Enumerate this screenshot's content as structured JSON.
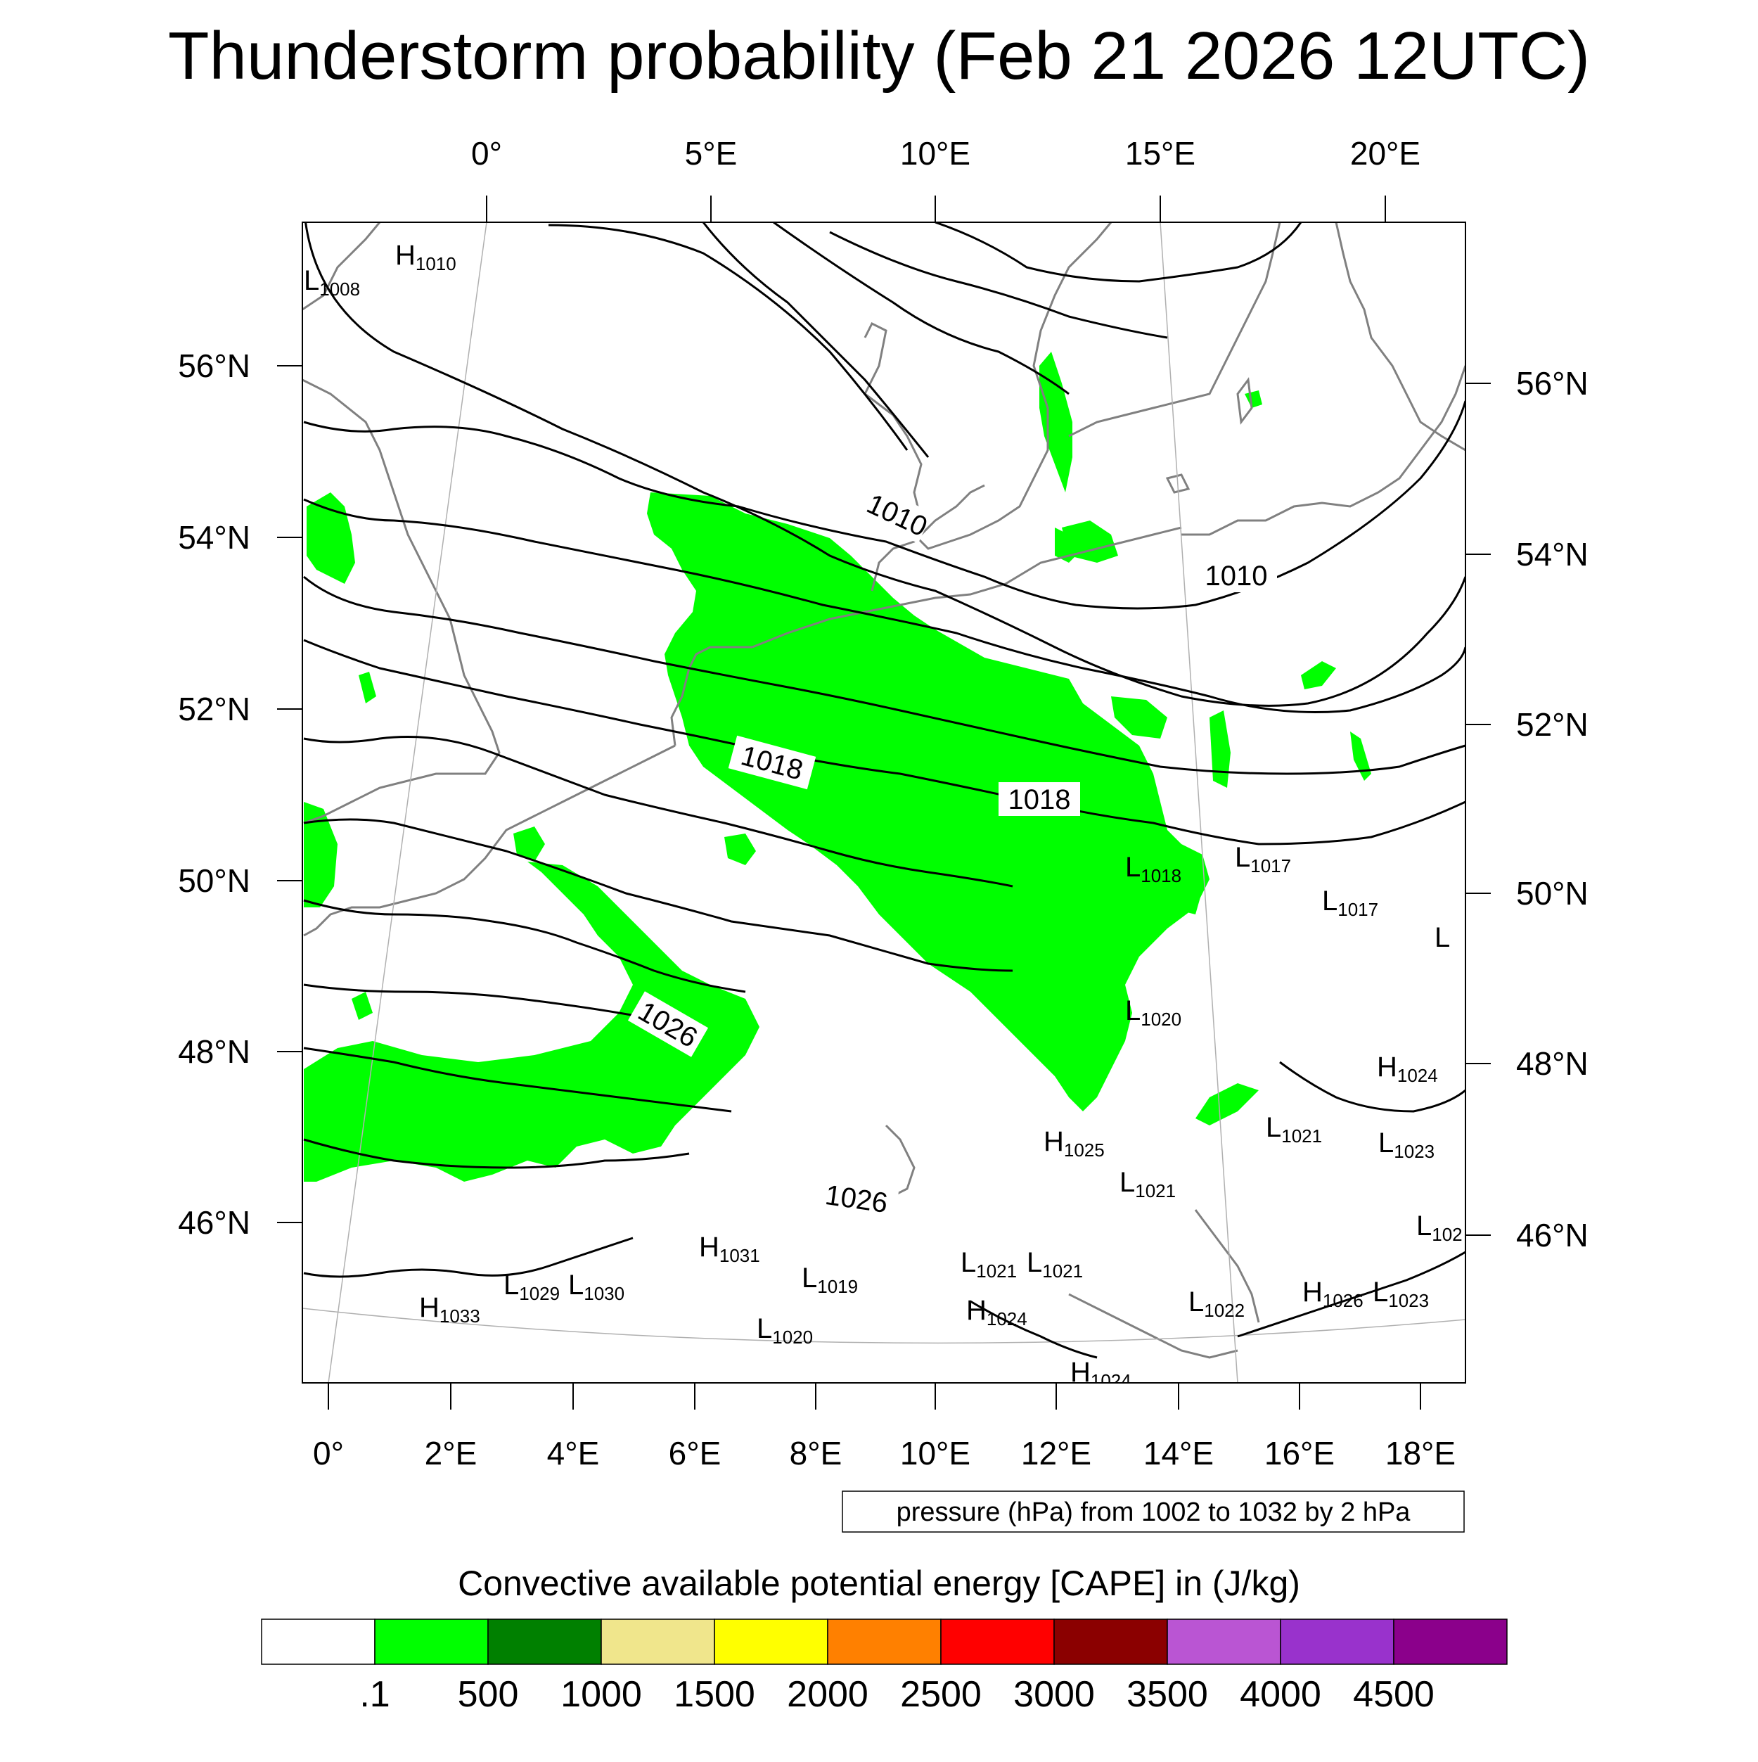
{
  "title": "Thunderstorm probability (Feb 21 2026 12UTC)",
  "axes": {
    "top": [
      "0°",
      "5°E",
      "10°E",
      "15°E",
      "20°E"
    ],
    "bottom": [
      "0°",
      "2°E",
      "4°E",
      "6°E",
      "8°E",
      "10°E",
      "12°E",
      "14°E",
      "16°E",
      "18°E"
    ],
    "left": [
      "56°N",
      "54°N",
      "52°N",
      "50°N",
      "48°N",
      "46°N"
    ],
    "right": [
      "56°N",
      "54°N",
      "52°N",
      "50°N",
      "48°N",
      "46°N"
    ]
  },
  "contour_labels": [
    "1010",
    "1010",
    "1018",
    "1018",
    "1026",
    "1026"
  ],
  "pressure_centers": [
    {
      "type": "H",
      "value": "1010"
    },
    {
      "type": "L",
      "value": "1008"
    },
    {
      "type": "L",
      "value": "1017"
    },
    {
      "type": "L",
      "value": "1018"
    },
    {
      "type": "L",
      "value": "1017"
    },
    {
      "type": "L",
      "value": ""
    },
    {
      "type": "L",
      "value": "1020"
    },
    {
      "type": "H",
      "value": "1024"
    },
    {
      "type": "H",
      "value": "1025"
    },
    {
      "type": "L",
      "value": "1021"
    },
    {
      "type": "L",
      "value": "1023"
    },
    {
      "type": "L",
      "value": "1021"
    },
    {
      "type": "L",
      "value": "102"
    },
    {
      "type": "H",
      "value": "1031"
    },
    {
      "type": "L",
      "value": "1019"
    },
    {
      "type": "L",
      "value": "1021"
    },
    {
      "type": "L",
      "value": "1021"
    },
    {
      "type": "H",
      "value": "1024"
    },
    {
      "type": "L",
      "value": "1029"
    },
    {
      "type": "L",
      "value": "1030"
    },
    {
      "type": "H",
      "value": "1033"
    },
    {
      "type": "L",
      "value": "1020"
    },
    {
      "type": "L",
      "value": "1022"
    },
    {
      "type": "H",
      "value": "1026"
    },
    {
      "type": "L",
      "value": "1023"
    },
    {
      "type": "H",
      "value": "1024"
    }
  ],
  "pressure_note": "pressure (hPa) from 1002 to 1032 by 2 hPa",
  "legend": {
    "title": "Convective available potential energy [CAPE] in (J/kg)",
    "colors": [
      "#ffffff",
      "#00ff00",
      "#008000",
      "#f0e68c",
      "#ffff00",
      "#ff8000",
      "#ff0000",
      "#8b0000",
      "#ba55d3",
      "#9932cc",
      "#8b008b"
    ],
    "labels": [
      ".1",
      "500",
      "1000",
      "1500",
      "2000",
      "2500",
      "3000",
      "3500",
      "4000",
      "4500"
    ]
  },
  "colors": {
    "cape_low": "#00ff00",
    "isobar": "#000000",
    "coast": "#808080",
    "frame": "#000000"
  }
}
